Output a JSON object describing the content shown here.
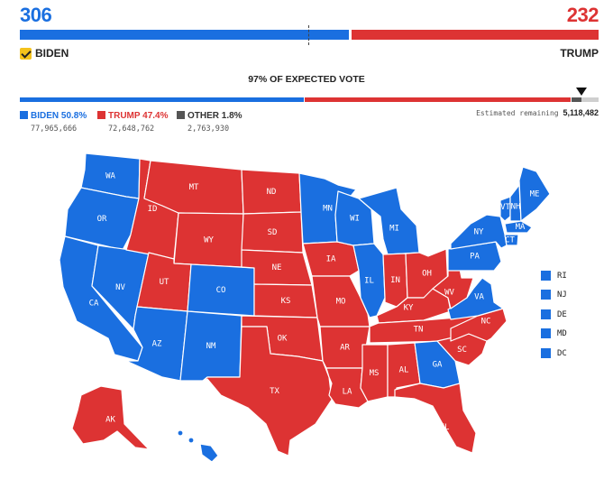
{
  "header": {
    "biden_ev": "306",
    "trump_ev": "232",
    "biden_name": "BIDEN",
    "trump_name": "TRUMP",
    "winner": "BIDEN",
    "expected_vote": "97% OF EXPECTED VOTE"
  },
  "popular": {
    "biden_pct": "BIDEN 50.8%",
    "biden_votes": "77,965,666",
    "trump_pct": "TRUMP 47.4%",
    "trump_votes": "72,648,762",
    "other_pct": "OTHER 1.8%",
    "other_votes": "2,763,930",
    "remaining_label": "Estimated remaining",
    "remaining_value": "5,118,482",
    "biden_share": 0.508,
    "trump_share": 0.474,
    "other_share": 0.018,
    "reported_fraction": 0.97
  },
  "colors": {
    "biden": "#1a6fe0",
    "trump": "#dd3333",
    "other": "#555555"
  },
  "small_states": [
    "RI",
    "NJ",
    "DE",
    "MD",
    "DC"
  ],
  "states": {
    "WA": "D",
    "OR": "D",
    "CA": "D",
    "NV": "D",
    "ID": "R",
    "MT": "R",
    "WY": "R",
    "UT": "R",
    "CO": "D",
    "AZ": "D",
    "NM": "D",
    "ND": "R",
    "SD": "R",
    "NE": "R",
    "KS": "R",
    "OK": "R",
    "TX": "R",
    "MN": "D",
    "IA": "R",
    "MO": "R",
    "AR": "R",
    "LA": "R",
    "WI": "D",
    "IL": "D",
    "MI": "D",
    "IN": "R",
    "OH": "R",
    "KY": "R",
    "TN": "R",
    "MS": "R",
    "AL": "R",
    "GA": "D",
    "FL": "R",
    "SC": "R",
    "NC": "R",
    "VA": "D",
    "WV": "R",
    "PA": "D",
    "NY": "D",
    "VT": "D",
    "NH": "D",
    "ME": "D",
    "MA": "D",
    "CT": "D",
    "AK": "R",
    "HI": "D"
  }
}
